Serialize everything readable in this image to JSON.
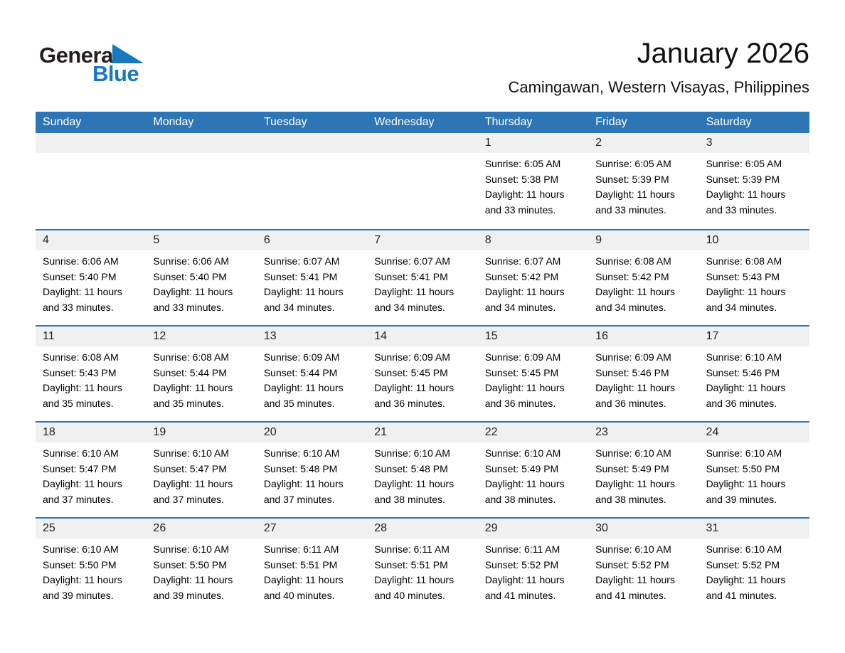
{
  "logo": {
    "part1": "General",
    "part2": "Blue",
    "triangle_icon": "blue-right-triangle"
  },
  "header": {
    "title": "January 2026",
    "subtitle": "Camingawan, Western Visayas, Philippines"
  },
  "weekdays": [
    "Sunday",
    "Monday",
    "Tuesday",
    "Wednesday",
    "Thursday",
    "Friday",
    "Saturday"
  ],
  "colors": {
    "header_blue": "#2e75b5",
    "row_divider_blue": "#2e75b5",
    "day_band_gray": "#f0f0f0",
    "logo_blue": "#1879bf"
  },
  "weeks": [
    [
      null,
      null,
      null,
      null,
      {
        "day": "1",
        "sunrise": "Sunrise: 6:05 AM",
        "sunset": "Sunset: 5:38 PM",
        "daylight1": "Daylight: 11 hours",
        "daylight2": "and 33 minutes."
      },
      {
        "day": "2",
        "sunrise": "Sunrise: 6:05 AM",
        "sunset": "Sunset: 5:39 PM",
        "daylight1": "Daylight: 11 hours",
        "daylight2": "and 33 minutes."
      },
      {
        "day": "3",
        "sunrise": "Sunrise: 6:05 AM",
        "sunset": "Sunset: 5:39 PM",
        "daylight1": "Daylight: 11 hours",
        "daylight2": "and 33 minutes."
      }
    ],
    [
      {
        "day": "4",
        "sunrise": "Sunrise: 6:06 AM",
        "sunset": "Sunset: 5:40 PM",
        "daylight1": "Daylight: 11 hours",
        "daylight2": "and 33 minutes."
      },
      {
        "day": "5",
        "sunrise": "Sunrise: 6:06 AM",
        "sunset": "Sunset: 5:40 PM",
        "daylight1": "Daylight: 11 hours",
        "daylight2": "and 33 minutes."
      },
      {
        "day": "6",
        "sunrise": "Sunrise: 6:07 AM",
        "sunset": "Sunset: 5:41 PM",
        "daylight1": "Daylight: 11 hours",
        "daylight2": "and 34 minutes."
      },
      {
        "day": "7",
        "sunrise": "Sunrise: 6:07 AM",
        "sunset": "Sunset: 5:41 PM",
        "daylight1": "Daylight: 11 hours",
        "daylight2": "and 34 minutes."
      },
      {
        "day": "8",
        "sunrise": "Sunrise: 6:07 AM",
        "sunset": "Sunset: 5:42 PM",
        "daylight1": "Daylight: 11 hours",
        "daylight2": "and 34 minutes."
      },
      {
        "day": "9",
        "sunrise": "Sunrise: 6:08 AM",
        "sunset": "Sunset: 5:42 PM",
        "daylight1": "Daylight: 11 hours",
        "daylight2": "and 34 minutes."
      },
      {
        "day": "10",
        "sunrise": "Sunrise: 6:08 AM",
        "sunset": "Sunset: 5:43 PM",
        "daylight1": "Daylight: 11 hours",
        "daylight2": "and 34 minutes."
      }
    ],
    [
      {
        "day": "11",
        "sunrise": "Sunrise: 6:08 AM",
        "sunset": "Sunset: 5:43 PM",
        "daylight1": "Daylight: 11 hours",
        "daylight2": "and 35 minutes."
      },
      {
        "day": "12",
        "sunrise": "Sunrise: 6:08 AM",
        "sunset": "Sunset: 5:44 PM",
        "daylight1": "Daylight: 11 hours",
        "daylight2": "and 35 minutes."
      },
      {
        "day": "13",
        "sunrise": "Sunrise: 6:09 AM",
        "sunset": "Sunset: 5:44 PM",
        "daylight1": "Daylight: 11 hours",
        "daylight2": "and 35 minutes."
      },
      {
        "day": "14",
        "sunrise": "Sunrise: 6:09 AM",
        "sunset": "Sunset: 5:45 PM",
        "daylight1": "Daylight: 11 hours",
        "daylight2": "and 36 minutes."
      },
      {
        "day": "15",
        "sunrise": "Sunrise: 6:09 AM",
        "sunset": "Sunset: 5:45 PM",
        "daylight1": "Daylight: 11 hours",
        "daylight2": "and 36 minutes."
      },
      {
        "day": "16",
        "sunrise": "Sunrise: 6:09 AM",
        "sunset": "Sunset: 5:46 PM",
        "daylight1": "Daylight: 11 hours",
        "daylight2": "and 36 minutes."
      },
      {
        "day": "17",
        "sunrise": "Sunrise: 6:10 AM",
        "sunset": "Sunset: 5:46 PM",
        "daylight1": "Daylight: 11 hours",
        "daylight2": "and 36 minutes."
      }
    ],
    [
      {
        "day": "18",
        "sunrise": "Sunrise: 6:10 AM",
        "sunset": "Sunset: 5:47 PM",
        "daylight1": "Daylight: 11 hours",
        "daylight2": "and 37 minutes."
      },
      {
        "day": "19",
        "sunrise": "Sunrise: 6:10 AM",
        "sunset": "Sunset: 5:47 PM",
        "daylight1": "Daylight: 11 hours",
        "daylight2": "and 37 minutes."
      },
      {
        "day": "20",
        "sunrise": "Sunrise: 6:10 AM",
        "sunset": "Sunset: 5:48 PM",
        "daylight1": "Daylight: 11 hours",
        "daylight2": "and 37 minutes."
      },
      {
        "day": "21",
        "sunrise": "Sunrise: 6:10 AM",
        "sunset": "Sunset: 5:48 PM",
        "daylight1": "Daylight: 11 hours",
        "daylight2": "and 38 minutes."
      },
      {
        "day": "22",
        "sunrise": "Sunrise: 6:10 AM",
        "sunset": "Sunset: 5:49 PM",
        "daylight1": "Daylight: 11 hours",
        "daylight2": "and 38 minutes."
      },
      {
        "day": "23",
        "sunrise": "Sunrise: 6:10 AM",
        "sunset": "Sunset: 5:49 PM",
        "daylight1": "Daylight: 11 hours",
        "daylight2": "and 38 minutes."
      },
      {
        "day": "24",
        "sunrise": "Sunrise: 6:10 AM",
        "sunset": "Sunset: 5:50 PM",
        "daylight1": "Daylight: 11 hours",
        "daylight2": "and 39 minutes."
      }
    ],
    [
      {
        "day": "25",
        "sunrise": "Sunrise: 6:10 AM",
        "sunset": "Sunset: 5:50 PM",
        "daylight1": "Daylight: 11 hours",
        "daylight2": "and 39 minutes."
      },
      {
        "day": "26",
        "sunrise": "Sunrise: 6:10 AM",
        "sunset": "Sunset: 5:50 PM",
        "daylight1": "Daylight: 11 hours",
        "daylight2": "and 39 minutes."
      },
      {
        "day": "27",
        "sunrise": "Sunrise: 6:11 AM",
        "sunset": "Sunset: 5:51 PM",
        "daylight1": "Daylight: 11 hours",
        "daylight2": "and 40 minutes."
      },
      {
        "day": "28",
        "sunrise": "Sunrise: 6:11 AM",
        "sunset": "Sunset: 5:51 PM",
        "daylight1": "Daylight: 11 hours",
        "daylight2": "and 40 minutes."
      },
      {
        "day": "29",
        "sunrise": "Sunrise: 6:11 AM",
        "sunset": "Sunset: 5:52 PM",
        "daylight1": "Daylight: 11 hours",
        "daylight2": "and 41 minutes."
      },
      {
        "day": "30",
        "sunrise": "Sunrise: 6:10 AM",
        "sunset": "Sunset: 5:52 PM",
        "daylight1": "Daylight: 11 hours",
        "daylight2": "and 41 minutes."
      },
      {
        "day": "31",
        "sunrise": "Sunrise: 6:10 AM",
        "sunset": "Sunset: 5:52 PM",
        "daylight1": "Daylight: 11 hours",
        "daylight2": "and 41 minutes."
      }
    ]
  ]
}
